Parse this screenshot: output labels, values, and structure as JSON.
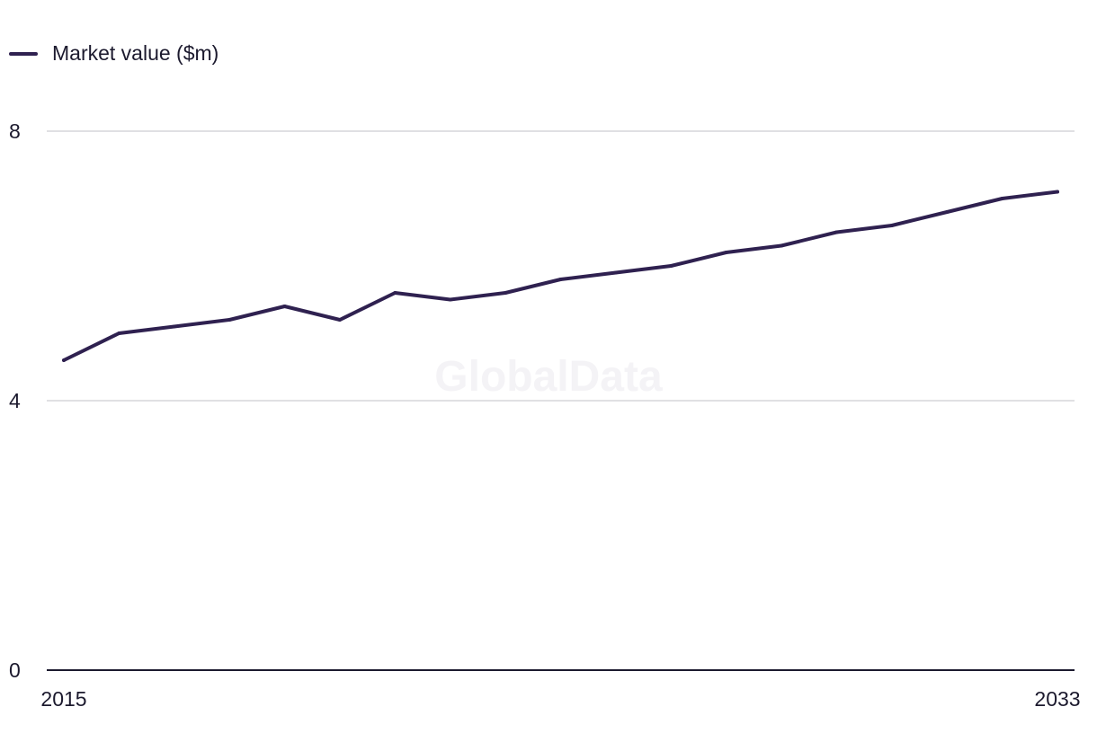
{
  "legend": {
    "label": "Market value ($m)"
  },
  "watermark": "GlobalData",
  "colors": {
    "series": "#2f2150",
    "grid": "#d6d6da",
    "axis": "#1c1a2e"
  },
  "chart_data": {
    "type": "line",
    "title": "",
    "xlabel": "",
    "ylabel": "",
    "x": [
      2015,
      2016,
      2017,
      2018,
      2019,
      2020,
      2021,
      2022,
      2023,
      2024,
      2025,
      2026,
      2027,
      2028,
      2029,
      2030,
      2031,
      2032,
      2033
    ],
    "series": [
      {
        "name": "Market value ($m)",
        "values": [
          4.6,
          5.0,
          5.1,
          5.2,
          5.4,
          5.2,
          5.6,
          5.5,
          5.6,
          5.8,
          5.9,
          6.0,
          6.2,
          6.3,
          6.5,
          6.6,
          6.8,
          7.0,
          7.1
        ]
      }
    ],
    "x_tick_labels": [
      "2015",
      "2033"
    ],
    "y_ticks": [
      0,
      4,
      8
    ],
    "ylim": [
      0,
      8
    ],
    "grid": true,
    "legend_position": "top-left"
  }
}
